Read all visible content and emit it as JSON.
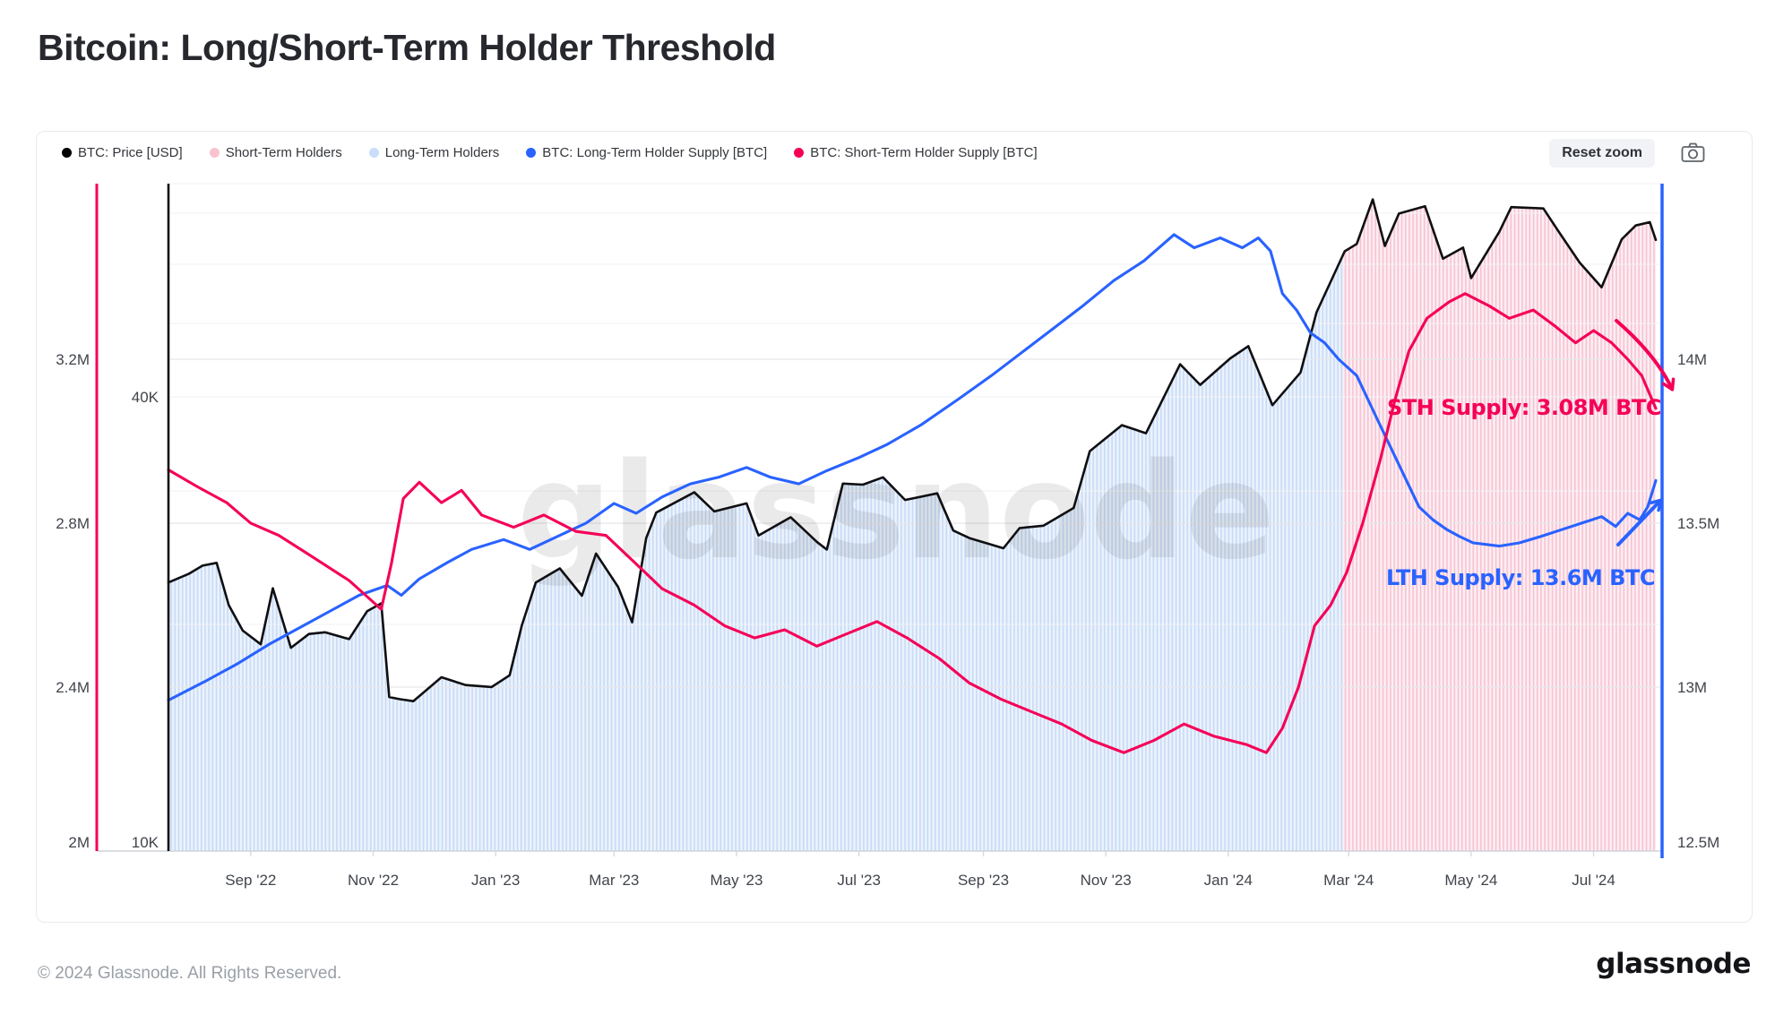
{
  "page": {
    "title": "Bitcoin: Long/Short-Term Holder Threshold"
  },
  "toolbar": {
    "reset_zoom_label": "Reset zoom"
  },
  "legend": {
    "items": [
      {
        "name": "btc-price",
        "label": "BTC: Price [USD]",
        "color": "#000000"
      },
      {
        "name": "short-term-holders",
        "label": "Short-Term Holders",
        "color": "#f8c3cf"
      },
      {
        "name": "long-term-holders",
        "label": "Long-Term Holders",
        "color": "#c9def9"
      },
      {
        "name": "lth-supply",
        "label": "BTC: Long-Term Holder Supply [BTC]",
        "color": "#2962ff"
      },
      {
        "name": "sth-supply",
        "label": "BTC: Short-Term Holder Supply [BTC]",
        "color": "#f50057"
      }
    ]
  },
  "watermark": "glassnode",
  "annotations": {
    "sth": {
      "text": "STH Supply: 3.08M BTC",
      "color": "#f50057"
    },
    "lth": {
      "text": "LTH Supply: 13.6M BTC",
      "color": "#2962ff"
    }
  },
  "footer": {
    "copyright": "© 2024 Glassnode. All Rights Reserved.",
    "logo": "glassnode"
  },
  "chart_data": {
    "type": "line",
    "title": "Bitcoin: Long/Short-Term Holder Threshold",
    "grid": true,
    "x_axis": {
      "range": [
        "2022-07-22",
        "2024-08-01"
      ],
      "ticks": [
        {
          "label": "Sep '22",
          "date": "2022-09-01"
        },
        {
          "label": "Nov '22",
          "date": "2022-11-01"
        },
        {
          "label": "Jan '23",
          "date": "2023-01-01"
        },
        {
          "label": "Mar '23",
          "date": "2023-03-01"
        },
        {
          "label": "May '23",
          "date": "2023-05-01"
        },
        {
          "label": "Jul '23",
          "date": "2023-07-01"
        },
        {
          "label": "Sep '23",
          "date": "2023-09-01"
        },
        {
          "label": "Nov '23",
          "date": "2023-11-01"
        },
        {
          "label": "Jan '24",
          "date": "2024-01-01"
        },
        {
          "label": "Mar '24",
          "date": "2024-03-01"
        },
        {
          "label": "May '24",
          "date": "2024-05-01"
        },
        {
          "label": "Jul '24",
          "date": "2024-07-01"
        }
      ]
    },
    "y_axes": {
      "sth_left": {
        "unit": "M BTC",
        "color": "#f50057",
        "ticks": [
          {
            "label": "2M",
            "v": 2.0
          },
          {
            "label": "2.4M",
            "v": 2.4
          },
          {
            "label": "2.8M",
            "v": 2.8
          },
          {
            "label": "3.2M",
            "v": 3.2
          }
        ]
      },
      "price_left": {
        "unit": "USD",
        "scale": "log",
        "color": "#000000",
        "ticks": [
          {
            "label": "10K",
            "v": 10000
          },
          {
            "label": "40K",
            "v": 40000
          }
        ]
      },
      "lth_right": {
        "unit": "M BTC",
        "color": "#2962ff",
        "ticks": [
          {
            "label": "12.5M",
            "v": 12.5
          },
          {
            "label": "13M",
            "v": 13.0
          },
          {
            "label": "13.5M",
            "v": 13.5
          },
          {
            "label": "14M",
            "v": 14.0
          }
        ]
      }
    },
    "bands": [
      {
        "name": "long-term-holders",
        "from": "2022-07-22",
        "to": "2024-02-27",
        "base": "#edf3fc",
        "stripe": "#c7dbf6"
      },
      {
        "name": "short-term-holders",
        "from": "2024-02-27",
        "to": "2024-08-01",
        "base": "#fdeff3",
        "stripe": "#f6c3d3"
      }
    ],
    "series": [
      {
        "name": "BTC: Price [USD]",
        "axis": "price_left",
        "color": "#0f0f12",
        "unit": "USD",
        "points": [
          [
            "2022-07-22",
            22700
          ],
          [
            "2022-08-01",
            23300
          ],
          [
            "2022-08-08",
            23900
          ],
          [
            "2022-08-15",
            24100
          ],
          [
            "2022-08-21",
            21200
          ],
          [
            "2022-08-28",
            19600
          ],
          [
            "2022-09-06",
            18800
          ],
          [
            "2022-09-12",
            22300
          ],
          [
            "2022-09-21",
            18600
          ],
          [
            "2022-09-30",
            19400
          ],
          [
            "2022-10-08",
            19500
          ],
          [
            "2022-10-20",
            19100
          ],
          [
            "2022-10-29",
            20800
          ],
          [
            "2022-11-05",
            21300
          ],
          [
            "2022-11-09",
            16000
          ],
          [
            "2022-11-14",
            15900
          ],
          [
            "2022-11-21",
            15800
          ],
          [
            "2022-12-05",
            17000
          ],
          [
            "2022-12-17",
            16600
          ],
          [
            "2022-12-30",
            16500
          ],
          [
            "2023-01-08",
            17100
          ],
          [
            "2023-01-14",
            19900
          ],
          [
            "2023-01-21",
            22700
          ],
          [
            "2023-02-02",
            23700
          ],
          [
            "2023-02-13",
            21800
          ],
          [
            "2023-02-20",
            24800
          ],
          [
            "2023-03-03",
            22400
          ],
          [
            "2023-03-10",
            20100
          ],
          [
            "2023-03-17",
            26000
          ],
          [
            "2023-03-22",
            28100
          ],
          [
            "2023-04-10",
            29900
          ],
          [
            "2023-04-20",
            28200
          ],
          [
            "2023-05-06",
            28900
          ],
          [
            "2023-05-12",
            26200
          ],
          [
            "2023-05-28",
            27700
          ],
          [
            "2023-06-10",
            25700
          ],
          [
            "2023-06-15",
            25100
          ],
          [
            "2023-06-23",
            30700
          ],
          [
            "2023-07-03",
            30600
          ],
          [
            "2023-07-13",
            31300
          ],
          [
            "2023-07-24",
            29200
          ],
          [
            "2023-08-09",
            29800
          ],
          [
            "2023-08-17",
            26600
          ],
          [
            "2023-08-25",
            26000
          ],
          [
            "2023-09-11",
            25200
          ],
          [
            "2023-09-19",
            26800
          ],
          [
            "2023-10-01",
            27000
          ],
          [
            "2023-10-16",
            28500
          ],
          [
            "2023-10-24",
            33900
          ],
          [
            "2023-11-09",
            36700
          ],
          [
            "2023-11-21",
            35800
          ],
          [
            "2023-12-08",
            44200
          ],
          [
            "2023-12-18",
            41500
          ],
          [
            "2024-01-02",
            45000
          ],
          [
            "2024-01-11",
            46700
          ],
          [
            "2024-01-23",
            39000
          ],
          [
            "2024-02-06",
            43100
          ],
          [
            "2024-02-14",
            51800
          ],
          [
            "2024-02-28",
            62400
          ],
          [
            "2024-03-05",
            63800
          ],
          [
            "2024-03-13",
            73100
          ],
          [
            "2024-03-19",
            63400
          ],
          [
            "2024-03-26",
            70000
          ],
          [
            "2024-04-08",
            71600
          ],
          [
            "2024-04-17",
            61000
          ],
          [
            "2024-04-27",
            63100
          ],
          [
            "2024-05-01",
            57500
          ],
          [
            "2024-05-15",
            66200
          ],
          [
            "2024-05-21",
            71400
          ],
          [
            "2024-06-06",
            71100
          ],
          [
            "2024-06-14",
            66000
          ],
          [
            "2024-06-24",
            60300
          ],
          [
            "2024-07-05",
            55900
          ],
          [
            "2024-07-15",
            64700
          ],
          [
            "2024-07-22",
            67500
          ],
          [
            "2024-07-29",
            68200
          ],
          [
            "2024-08-01",
            64600
          ]
        ]
      },
      {
        "name": "BTC: Long-Term Holder Supply [BTC]",
        "axis": "lth_right",
        "color": "#2962ff",
        "unit": "M BTC",
        "points": [
          [
            "2022-07-22",
            12.96
          ],
          [
            "2022-08-10",
            13.02
          ],
          [
            "2022-08-25",
            13.07
          ],
          [
            "2022-09-10",
            13.13
          ],
          [
            "2022-09-25",
            13.18
          ],
          [
            "2022-10-10",
            13.23
          ],
          [
            "2022-10-25",
            13.28
          ],
          [
            "2022-11-08",
            13.31
          ],
          [
            "2022-11-15",
            13.28
          ],
          [
            "2022-11-24",
            13.33
          ],
          [
            "2022-12-08",
            13.38
          ],
          [
            "2022-12-20",
            13.42
          ],
          [
            "2023-01-05",
            13.45
          ],
          [
            "2023-01-18",
            13.42
          ],
          [
            "2023-02-01",
            13.46
          ],
          [
            "2023-02-15",
            13.5
          ],
          [
            "2023-03-01",
            13.56
          ],
          [
            "2023-03-12",
            13.53
          ],
          [
            "2023-03-25",
            13.58
          ],
          [
            "2023-04-08",
            13.62
          ],
          [
            "2023-04-22",
            13.64
          ],
          [
            "2023-05-06",
            13.67
          ],
          [
            "2023-05-18",
            13.64
          ],
          [
            "2023-06-01",
            13.62
          ],
          [
            "2023-06-15",
            13.66
          ],
          [
            "2023-07-01",
            13.7
          ],
          [
            "2023-07-15",
            13.74
          ],
          [
            "2023-08-01",
            13.8
          ],
          [
            "2023-08-20",
            13.88
          ],
          [
            "2023-09-05",
            13.95
          ],
          [
            "2023-09-20",
            14.02
          ],
          [
            "2023-10-05",
            14.09
          ],
          [
            "2023-10-20",
            14.16
          ],
          [
            "2023-11-05",
            14.24
          ],
          [
            "2023-11-20",
            14.3
          ],
          [
            "2023-12-05",
            14.38
          ],
          [
            "2023-12-15",
            14.34
          ],
          [
            "2023-12-28",
            14.37
          ],
          [
            "2024-01-08",
            14.34
          ],
          [
            "2024-01-16",
            14.37
          ],
          [
            "2024-01-22",
            14.33
          ],
          [
            "2024-01-28",
            14.2
          ],
          [
            "2024-02-04",
            14.15
          ],
          [
            "2024-02-11",
            14.08
          ],
          [
            "2024-02-18",
            14.05
          ],
          [
            "2024-02-25",
            14.0
          ],
          [
            "2024-03-05",
            13.95
          ],
          [
            "2024-03-15",
            13.82
          ],
          [
            "2024-03-22",
            13.73
          ],
          [
            "2024-03-29",
            13.64
          ],
          [
            "2024-04-05",
            13.55
          ],
          [
            "2024-04-12",
            13.51
          ],
          [
            "2024-04-19",
            13.48
          ],
          [
            "2024-04-25",
            13.46
          ],
          [
            "2024-05-02",
            13.44
          ],
          [
            "2024-05-15",
            13.43
          ],
          [
            "2024-05-25",
            13.44
          ],
          [
            "2024-06-05",
            13.46
          ],
          [
            "2024-06-15",
            13.48
          ],
          [
            "2024-06-25",
            13.5
          ],
          [
            "2024-07-05",
            13.52
          ],
          [
            "2024-07-12",
            13.49
          ],
          [
            "2024-07-18",
            13.53
          ],
          [
            "2024-07-24",
            13.51
          ],
          [
            "2024-07-28",
            13.55
          ],
          [
            "2024-08-01",
            13.63
          ]
        ]
      },
      {
        "name": "BTC: Short-Term Holder Supply [BTC]",
        "axis": "sth_left",
        "color": "#f50057",
        "unit": "M BTC",
        "points": [
          [
            "2022-07-22",
            2.93
          ],
          [
            "2022-08-05",
            2.89
          ],
          [
            "2022-08-20",
            2.85
          ],
          [
            "2022-09-01",
            2.8
          ],
          [
            "2022-09-15",
            2.77
          ],
          [
            "2022-10-01",
            2.72
          ],
          [
            "2022-10-20",
            2.66
          ],
          [
            "2022-11-05",
            2.59
          ],
          [
            "2022-11-10",
            2.7
          ],
          [
            "2022-11-16",
            2.86
          ],
          [
            "2022-11-24",
            2.9
          ],
          [
            "2022-12-05",
            2.85
          ],
          [
            "2022-12-15",
            2.88
          ],
          [
            "2022-12-25",
            2.82
          ],
          [
            "2023-01-10",
            2.79
          ],
          [
            "2023-01-25",
            2.82
          ],
          [
            "2023-02-10",
            2.78
          ],
          [
            "2023-02-25",
            2.77
          ],
          [
            "2023-03-10",
            2.71
          ],
          [
            "2023-03-25",
            2.64
          ],
          [
            "2023-04-10",
            2.6
          ],
          [
            "2023-04-25",
            2.55
          ],
          [
            "2023-05-10",
            2.52
          ],
          [
            "2023-05-25",
            2.54
          ],
          [
            "2023-06-10",
            2.5
          ],
          [
            "2023-06-25",
            2.53
          ],
          [
            "2023-07-10",
            2.56
          ],
          [
            "2023-07-25",
            2.52
          ],
          [
            "2023-08-10",
            2.47
          ],
          [
            "2023-08-25",
            2.41
          ],
          [
            "2023-09-10",
            2.37
          ],
          [
            "2023-09-25",
            2.34
          ],
          [
            "2023-10-10",
            2.31
          ],
          [
            "2023-10-25",
            2.27
          ],
          [
            "2023-11-10",
            2.24
          ],
          [
            "2023-11-25",
            2.27
          ],
          [
            "2023-12-10",
            2.31
          ],
          [
            "2023-12-25",
            2.28
          ],
          [
            "2024-01-10",
            2.26
          ],
          [
            "2024-01-20",
            2.24
          ],
          [
            "2024-01-28",
            2.3
          ],
          [
            "2024-02-05",
            2.4
          ],
          [
            "2024-02-13",
            2.55
          ],
          [
            "2024-02-21",
            2.6
          ],
          [
            "2024-02-29",
            2.68
          ],
          [
            "2024-03-08",
            2.8
          ],
          [
            "2024-03-17",
            2.96
          ],
          [
            "2024-03-24",
            3.1
          ],
          [
            "2024-03-31",
            3.22
          ],
          [
            "2024-04-09",
            3.3
          ],
          [
            "2024-04-20",
            3.34
          ],
          [
            "2024-04-28",
            3.36
          ],
          [
            "2024-05-10",
            3.33
          ],
          [
            "2024-05-20",
            3.3
          ],
          [
            "2024-06-01",
            3.32
          ],
          [
            "2024-06-12",
            3.28
          ],
          [
            "2024-06-22",
            3.24
          ],
          [
            "2024-07-01",
            3.27
          ],
          [
            "2024-07-10",
            3.24
          ],
          [
            "2024-07-18",
            3.2
          ],
          [
            "2024-07-25",
            3.16
          ],
          [
            "2024-08-01",
            3.08
          ]
        ]
      }
    ]
  }
}
